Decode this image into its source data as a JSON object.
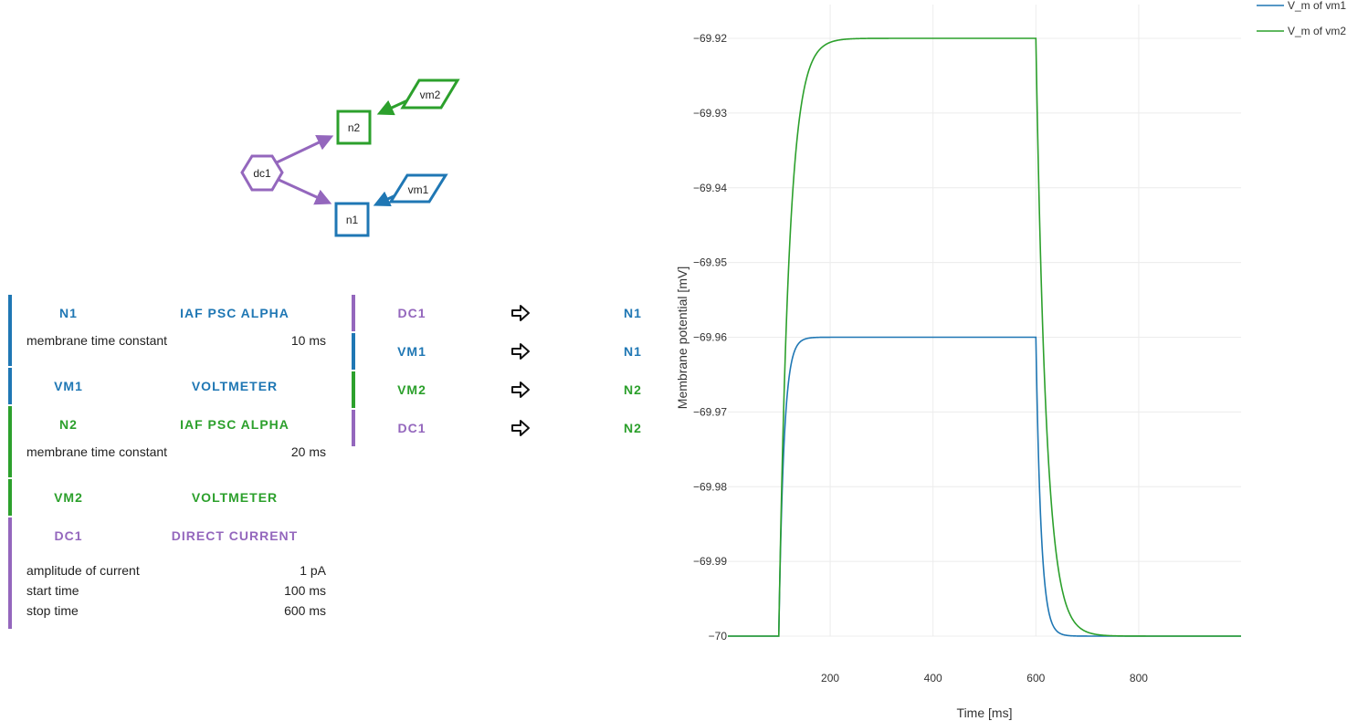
{
  "colors": {
    "blue": "#1f77b4",
    "green": "#2ca02c",
    "purple": "#9467bd"
  },
  "graph": {
    "nodes": [
      {
        "id": "n2",
        "label": "n2",
        "shape": "square",
        "color": "#2ca02c"
      },
      {
        "id": "n1",
        "label": "n1",
        "shape": "square",
        "color": "#1f77b4"
      },
      {
        "id": "dc1",
        "label": "dc1",
        "shape": "hexagon",
        "color": "#9467bd"
      },
      {
        "id": "vm2",
        "label": "vm2",
        "shape": "parallelogram",
        "color": "#2ca02c"
      },
      {
        "id": "vm1",
        "label": "vm1",
        "shape": "parallelogram",
        "color": "#1f77b4"
      }
    ]
  },
  "nodes_panel": [
    {
      "name": "n1",
      "model": "iaf psc alpha",
      "color": "#1f77b4",
      "params": [
        {
          "label": "membrane time constant",
          "value": "10 ms"
        }
      ]
    },
    {
      "name": "vm1",
      "model": "voltmeter",
      "color": "#1f77b4",
      "params": []
    },
    {
      "name": "n2",
      "model": "iaf psc alpha",
      "color": "#2ca02c",
      "params": [
        {
          "label": "membrane time constant",
          "value": "20 ms"
        }
      ]
    },
    {
      "name": "vm2",
      "model": "voltmeter",
      "color": "#2ca02c",
      "params": []
    },
    {
      "name": "dc1",
      "model": "direct current",
      "color": "#9467bd",
      "params": [
        {
          "label": "amplitude of current",
          "value": "1 pA"
        },
        {
          "label": "start time",
          "value": "100 ms"
        },
        {
          "label": "stop time",
          "value": "600 ms"
        }
      ]
    }
  ],
  "connections": [
    {
      "source": "DC1",
      "target": "N1",
      "source_color": "#9467bd",
      "target_color": "#1f77b4"
    },
    {
      "source": "VM1",
      "target": "N1",
      "source_color": "#1f77b4",
      "target_color": "#1f77b4"
    },
    {
      "source": "VM2",
      "target": "N2",
      "source_color": "#2ca02c",
      "target_color": "#2ca02c"
    },
    {
      "source": "DC1",
      "target": "N2",
      "source_color": "#9467bd",
      "target_color": "#2ca02c"
    }
  ],
  "chart_data": {
    "type": "line",
    "xlabel": "Time [ms]",
    "ylabel": "Membrane potential [mV]",
    "xlim": [
      1,
      999
    ],
    "ylim": [
      -70.0,
      -69.92
    ],
    "x_ticks": [
      200,
      400,
      600,
      800
    ],
    "y_ticks": [
      -69.92,
      -69.93,
      -69.94,
      -69.95,
      -69.96,
      -69.97,
      -69.98,
      -69.99,
      -70
    ],
    "y_tick_labels": [
      "−69.92",
      "−69.93",
      "−69.94",
      "−69.95",
      "−69.96",
      "−69.97",
      "−69.98",
      "−69.99",
      "−70"
    ],
    "grid": true,
    "legend_position": "top-right",
    "series": [
      {
        "name": "V_m of vm1",
        "color": "#1f77b4",
        "rest": -70.0,
        "plateau": -69.96,
        "onset": 100,
        "offset": 600,
        "tau": 10,
        "x": [
          1,
          100,
          110,
          120,
          150,
          200,
          600,
          610,
          630,
          650,
          700,
          999
        ],
        "y": [
          -70.0,
          -70.0,
          -69.9625,
          -69.96,
          -69.96,
          -69.96,
          -69.96,
          -69.9975,
          -70.0,
          -70.0,
          -70.0,
          -70.0
        ]
      },
      {
        "name": "V_m of vm2",
        "color": "#2ca02c",
        "rest": -70.0,
        "plateau": -69.92,
        "onset": 100,
        "offset": 600,
        "tau": 20,
        "x": [
          1,
          100,
          120,
          140,
          200,
          300,
          600,
          620,
          640,
          700,
          750,
          999
        ],
        "y": [
          -70.0,
          -70.0,
          -69.949,
          -69.931,
          -69.9213,
          -69.92,
          -69.92,
          -69.949,
          -69.969,
          -69.9987,
          -70.0,
          -70.0
        ]
      }
    ]
  }
}
